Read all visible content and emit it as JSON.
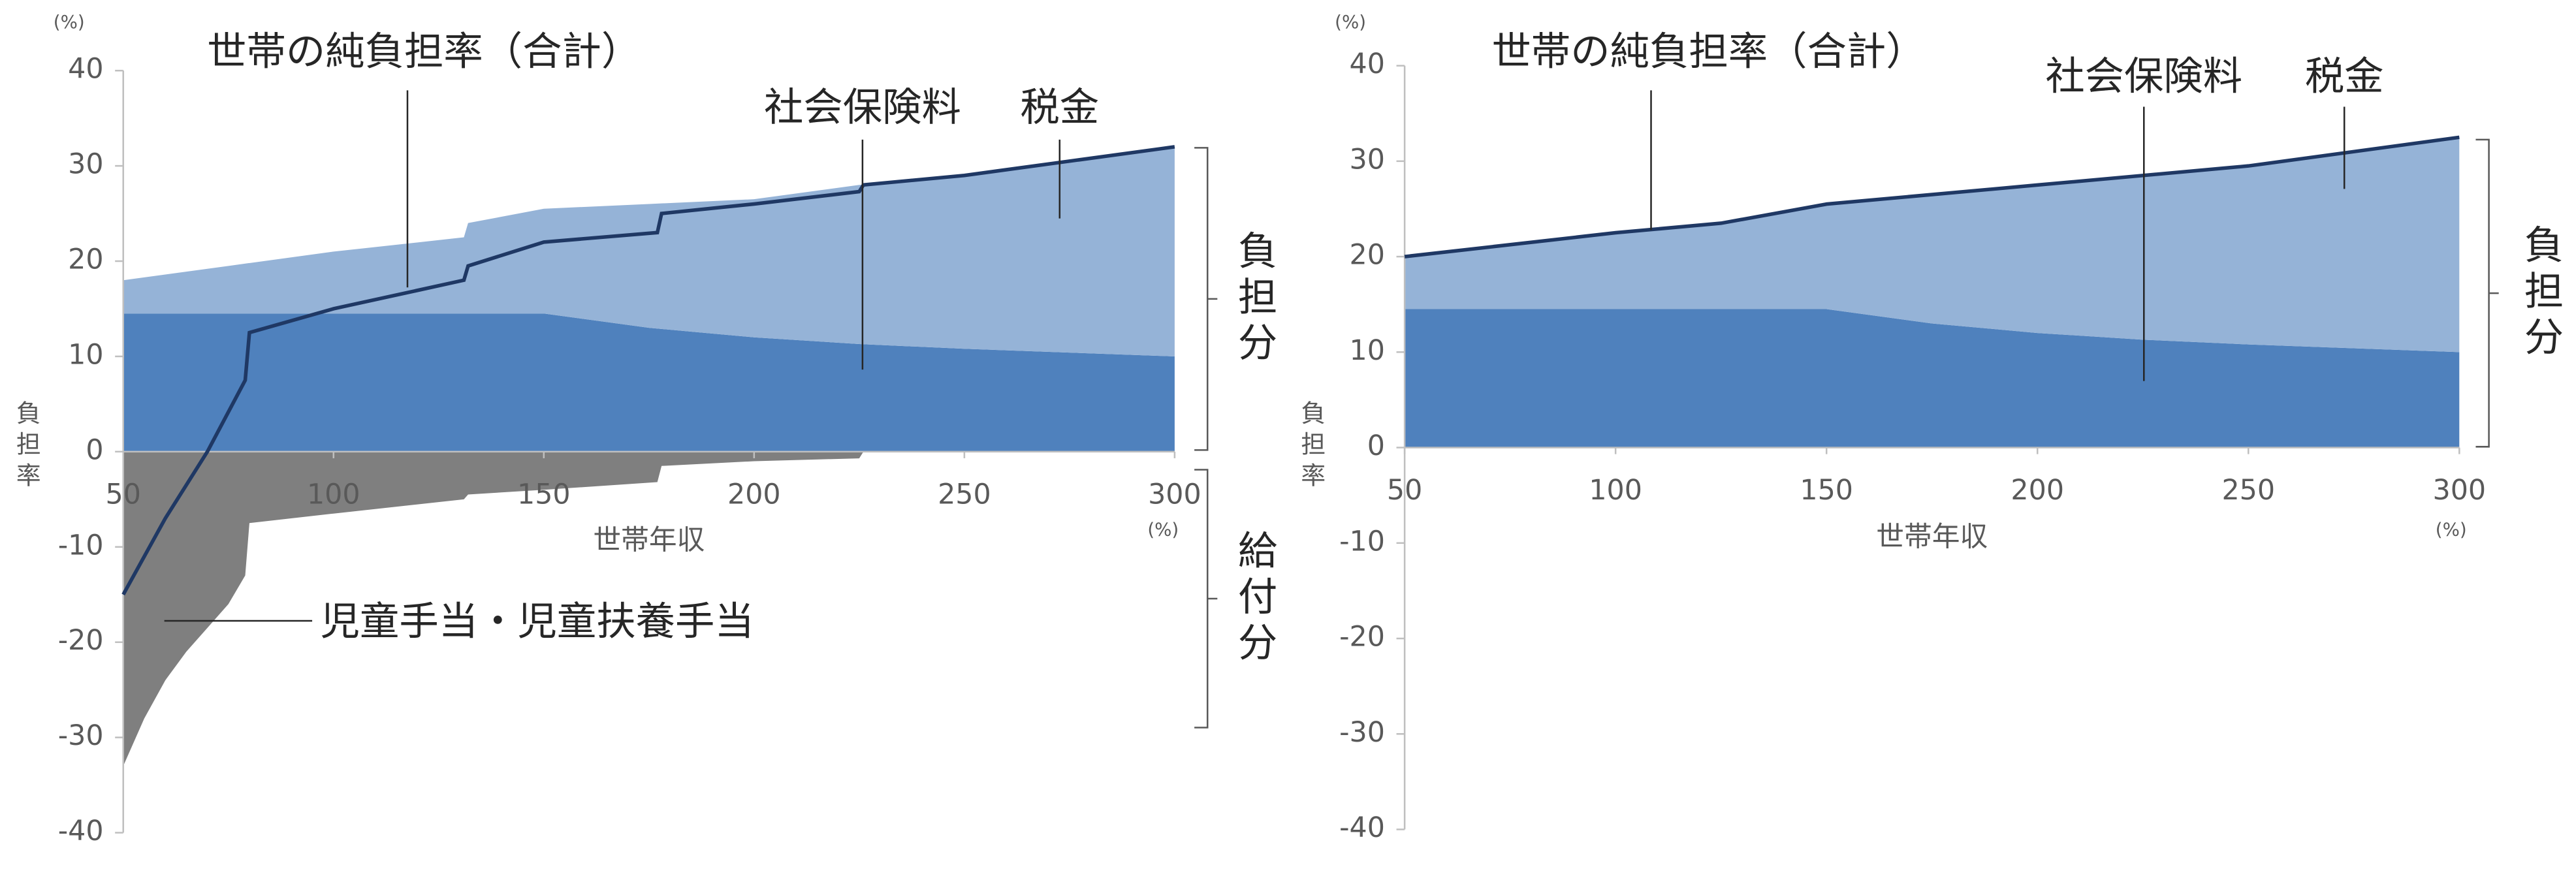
{
  "chart_data": [
    {
      "type": "area",
      "y_label": "負担率",
      "x_label": "世帯年収",
      "y_unit": "(%)",
      "x_unit": "(%)",
      "annotations": [
        "負担分",
        "給付分"
      ],
      "xlim": [
        50,
        300
      ],
      "xticks": [
        50,
        100,
        150,
        200,
        250,
        300
      ],
      "ylim": [
        -40,
        40
      ],
      "yticks": [
        -40,
        -30,
        -20,
        -10,
        0,
        10,
        20,
        30,
        40
      ],
      "x": [
        50,
        75,
        100,
        131,
        132,
        150,
        175,
        200,
        225,
        250,
        275,
        300
      ],
      "series": [
        {
          "name": "社会保険料",
          "type": "area",
          "color": "#4f81bd",
          "values": [
            14.5,
            14.5,
            14.5,
            14.5,
            14.5,
            14.5,
            13,
            12,
            11.3,
            10.8,
            10.4,
            10
          ]
        },
        {
          "name": "税金",
          "type": "area",
          "color": "#95b3d7",
          "values": [
            3.5,
            5,
            6.5,
            8,
            9.5,
            11,
            13,
            14.5,
            16.7,
            18.2,
            20.1,
            22
          ]
        },
        {
          "name": "児童手当・児童扶養手当",
          "type": "area",
          "color": "#7f7f7f",
          "x": [
            50,
            55,
            60,
            65,
            70,
            75,
            79,
            80,
            100,
            131,
            132,
            150,
            177,
            178,
            200,
            225,
            226
          ],
          "values": [
            -33,
            -28,
            -24,
            -21,
            -18.5,
            -16,
            -13,
            -7.5,
            -6.5,
            -5,
            -4.5,
            -4,
            -3.2,
            -1.5,
            -1,
            -0.7,
            0
          ]
        },
        {
          "name": "世帯の純負担率（合計）",
          "type": "line",
          "color": "#1f3864",
          "x": [
            50,
            60,
            70,
            79,
            80,
            100,
            131,
            132,
            150,
            177,
            178,
            200,
            225,
            226,
            250,
            275,
            300
          ],
          "values": [
            -15,
            -7,
            0,
            7.5,
            12.5,
            15,
            18,
            19.5,
            22,
            23,
            25,
            26,
            27.3,
            28,
            29,
            30.5,
            32
          ]
        }
      ]
    },
    {
      "type": "area",
      "y_label": "負担率",
      "x_label": "世帯年収",
      "y_unit": "(%)",
      "x_unit": "(%)",
      "annotations": [
        "負担分"
      ],
      "xlim": [
        50,
        300
      ],
      "xticks": [
        50,
        100,
        150,
        200,
        250,
        300
      ],
      "ylim": [
        -40,
        40
      ],
      "yticks": [
        -40,
        -30,
        -20,
        -10,
        0,
        10,
        20,
        30,
        40
      ],
      "x": [
        50,
        100,
        125,
        150,
        175,
        200,
        225,
        250,
        275,
        300
      ],
      "series": [
        {
          "name": "社会保険料",
          "type": "area",
          "color": "#4f81bd",
          "values": [
            14.5,
            14.5,
            14.5,
            14.5,
            13,
            12,
            11.3,
            10.8,
            10.4,
            10
          ]
        },
        {
          "name": "税金",
          "type": "area",
          "color": "#95b3d7",
          "values": [
            5.5,
            8,
            9,
            11,
            13.5,
            15.5,
            17.2,
            18.7,
            20.6,
            22.5
          ]
        },
        {
          "name": "世帯の純負担率（合計）",
          "type": "line",
          "color": "#1f3864",
          "x": [
            50,
            100,
            125,
            150,
            200,
            250,
            300
          ],
          "values": [
            20,
            22.5,
            23.5,
            25.5,
            27.5,
            29.5,
            32.5
          ]
        }
      ]
    }
  ]
}
